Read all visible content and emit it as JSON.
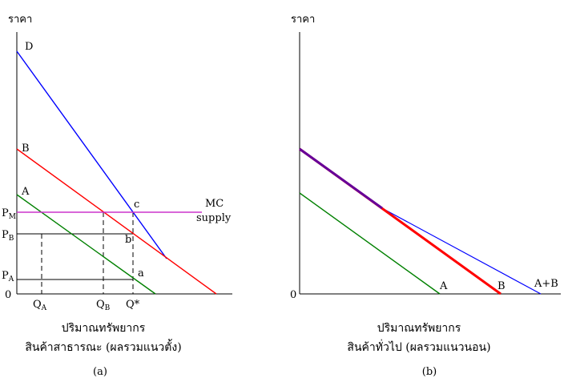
{
  "panel_a": {
    "y_axis_label": "ราคา",
    "origin_label": "0",
    "curve_labels": {
      "D": "D",
      "B": "B",
      "A": "A"
    },
    "mc_label": "MC",
    "supply_label": "supply",
    "price_labels": {
      "pm": {
        "main": "P",
        "sub": "M"
      },
      "pb": {
        "main": "P",
        "sub": "B"
      },
      "pa": {
        "main": "P",
        "sub": "A"
      }
    },
    "quantity_labels": {
      "qa": {
        "main": "Q",
        "sub": "A"
      },
      "qb": {
        "main": "Q",
        "sub": "B"
      },
      "qstar": "Q*"
    },
    "point_labels": {
      "a": "a",
      "b": "b",
      "c": "c"
    },
    "x_axis_caption_line1": "ปริมาณทรัพยากร",
    "x_axis_caption_line2": "สินค้าสาธารณะ (ผลรวมแนวตั้ง)",
    "panel_label": "(a)"
  },
  "panel_b": {
    "y_axis_label": "ราคา",
    "origin_label": "0",
    "curve_labels": {
      "A": "A",
      "B": "B",
      "AB": "A+B"
    },
    "x_axis_caption_line1": "ปริมาณทรัพยากร",
    "x_axis_caption_line2": "สินค้าทั่วไป (ผลรวมแนวนอน)",
    "panel_label": "(b)"
  },
  "colors": {
    "demand_d": "#0000ff",
    "demand_b": "#ff0000",
    "demand_a": "#008000",
    "mc_line": "#cc33cc",
    "axis": "#000000",
    "sum_curve": "#0000ff",
    "overlap_curve": "#660099"
  }
}
